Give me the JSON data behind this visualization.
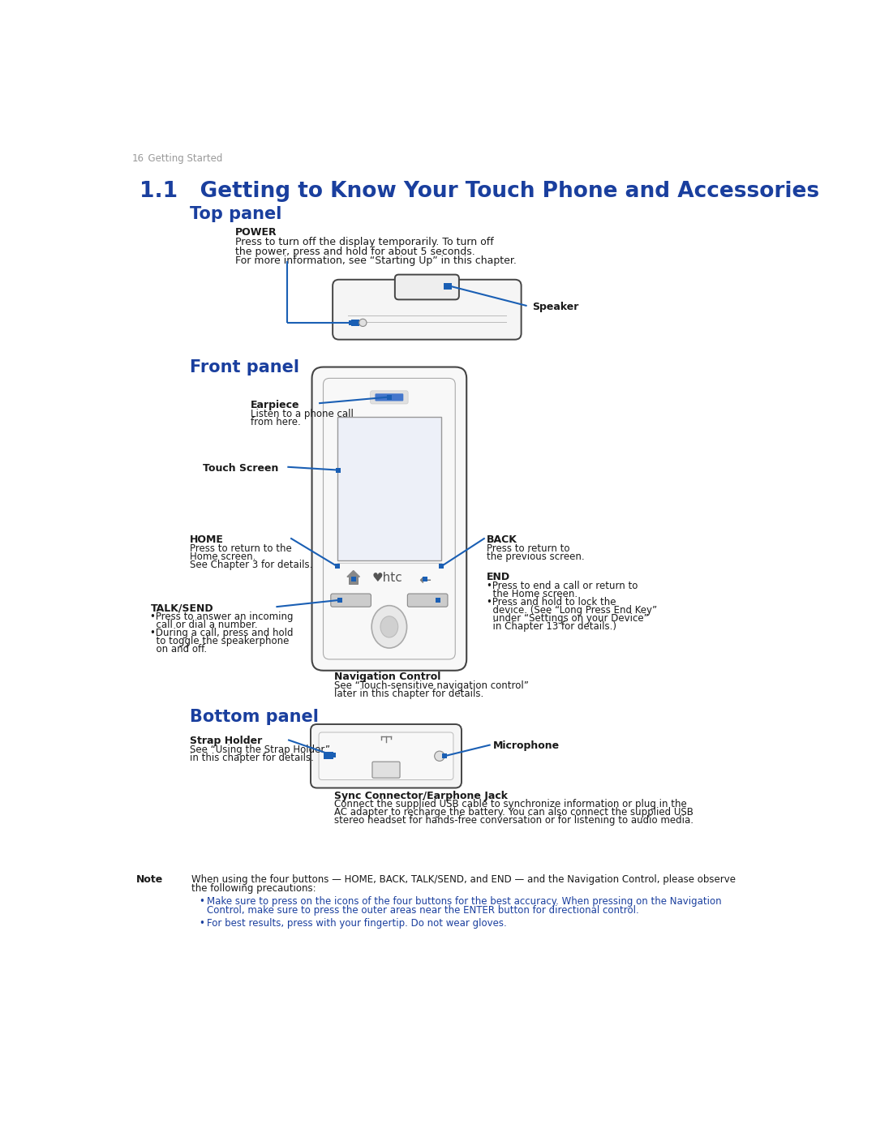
{
  "page_number": "16",
  "page_label": "  Getting Started",
  "title": "1.1   Getting to Know Your Touch Phone and Accessories",
  "blue": "#1a3f9e",
  "black": "#1a1a1a",
  "gray_text": "#999999",
  "line_blue": "#1a5fb4",
  "dark_line": "#444444",
  "top_panel_label": "Top panel",
  "front_panel_label": "Front panel",
  "bottom_panel_label": "Bottom panel",
  "power_label": "POWER",
  "power_text1": "Press to turn off the display temporarily. To turn off",
  "power_text2": "the power, press and hold for about 5 seconds.",
  "power_text3": "For more information, see “Starting Up” in this chapter.",
  "speaker_label": "Speaker",
  "earpiece_label": "Earpiece",
  "earpiece_text1": "Listen to a phone call",
  "earpiece_text2": "from here.",
  "touch_screen_label": "Touch Screen",
  "home_label": "HOME",
  "home_text1": "Press to return to the",
  "home_text2": "Home screen.",
  "home_text3": "See Chapter 3 for details.",
  "back_label": "BACK",
  "back_text1": "Press to return to",
  "back_text2": "the previous screen.",
  "end_label": "END",
  "end_text1": "•Press to end a call or return to",
  "end_text2": "  the Home screen.",
  "end_text3": "•Press and hold to lock the",
  "end_text4": "  device. (See “Long Press End Key”",
  "end_text5": "  under “Settings on your Device”",
  "end_text6": "  in Chapter 13 for details.)",
  "talk_send_label": "TALK/SEND",
  "talk_send_text1": "•Press to answer an incoming",
  "talk_send_text2": "  call or dial a number.",
  "talk_send_text3": "•During a call, press and hold",
  "talk_send_text4": "  to toggle the speakerphone",
  "talk_send_text5": "  on and off.",
  "nav_control_label": "Navigation Control",
  "nav_control_text1": "See “Touch-sensitive navigation control”",
  "nav_control_text2": "later in this chapter for details.",
  "strap_holder_label": "Strap Holder",
  "strap_holder_text1": "See “Using the Strap Holder”",
  "strap_holder_text2": "in this chapter for details.",
  "microphone_label": "Microphone",
  "sync_label": "Sync Connector/Earphone Jack",
  "sync_text1": "Connect the supplied USB cable to synchronize information or plug in the",
  "sync_text2": "AC adapter to recharge the battery. You can also connect the supplied USB",
  "sync_text3": "stereo headset for hands-free conversation or for listening to audio media.",
  "note_label": "Note",
  "note_text1": "When using the four buttons — HOME, BACK, TALK/SEND, and END — and the Navigation Control, please observe",
  "note_text2": "the following precautions:",
  "bullet1a": "Make sure to press on the icons of the four buttons for the best accuracy. When pressing on the Navigation",
  "bullet1b": "Control, make sure to press the outer areas near the ENTER button for directional control.",
  "bullet2": "For best results, press with your fingertip. Do not wear gloves."
}
